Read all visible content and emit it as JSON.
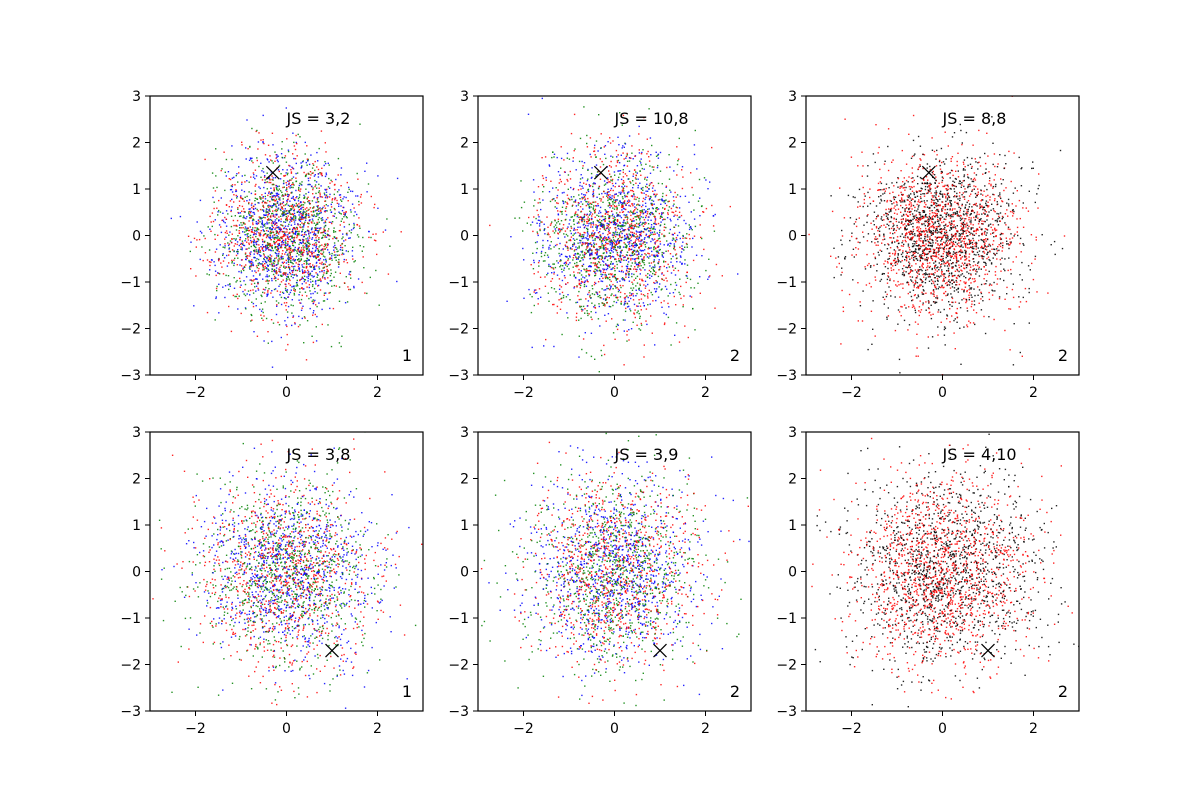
{
  "figure": {
    "background": "#ffffff",
    "series_colors": {
      "red": "#ff0000",
      "green": "#008000",
      "blue": "#0000ff",
      "black": "#000000"
    },
    "point_size_note": "tiny dots"
  },
  "chart_data": [
    {
      "type": "scatter",
      "annotation": "JS = 3,2",
      "corner_label": "1",
      "xlim": [
        -3,
        3
      ],
      "ylim": [
        -3,
        3
      ],
      "xticks": [
        -2,
        0,
        2
      ],
      "yticks": [
        -3,
        -2,
        -1,
        0,
        1,
        2,
        3
      ],
      "grid": false,
      "marker": {
        "symbol": "x",
        "x": -0.3,
        "y": 1.35
      },
      "distribution": {
        "shape": "gaussian cloud",
        "center": [
          0,
          0
        ],
        "std": [
          0.75,
          0.85
        ]
      },
      "series": [
        {
          "color": "#ff0000",
          "count": 900
        },
        {
          "color": "#008000",
          "count": 900
        },
        {
          "color": "#0000ff",
          "count": 900
        }
      ]
    },
    {
      "type": "scatter",
      "annotation": "JS = 10,8",
      "corner_label": "2",
      "xlim": [
        -3,
        3
      ],
      "ylim": [
        -3,
        3
      ],
      "xticks": [
        -2,
        0,
        2
      ],
      "yticks": [
        -3,
        -2,
        -1,
        0,
        1,
        2,
        3
      ],
      "grid": false,
      "marker": {
        "symbol": "x",
        "x": -0.3,
        "y": 1.35
      },
      "distribution": {
        "shape": "gaussian cloud",
        "center": [
          0,
          0
        ],
        "std": [
          0.85,
          0.9
        ]
      },
      "series": [
        {
          "color": "#ff0000",
          "count": 900
        },
        {
          "color": "#008000",
          "count": 900
        },
        {
          "color": "#0000ff",
          "count": 900
        }
      ]
    },
    {
      "type": "scatter",
      "annotation": "JS = 8,8",
      "corner_label": "2",
      "xlim": [
        -3,
        3
      ],
      "ylim": [
        -3,
        3
      ],
      "xticks": [
        -2,
        0,
        2
      ],
      "yticks": [
        -3,
        -2,
        -1,
        0,
        1,
        2,
        3
      ],
      "grid": false,
      "marker": {
        "symbol": "x",
        "x": -0.3,
        "y": 1.35
      },
      "distribution": {
        "shape": "gaussian cloud",
        "center": [
          0,
          0
        ],
        "std": [
          0.85,
          0.85
        ]
      },
      "series": [
        {
          "color": "#ff0000",
          "count": 1300
        },
        {
          "color": "#000000",
          "count": 1300
        }
      ]
    },
    {
      "type": "scatter",
      "annotation": "JS = 3,8",
      "corner_label": "1",
      "xlim": [
        -3,
        3
      ],
      "ylim": [
        -3,
        3
      ],
      "xticks": [
        -2,
        0,
        2
      ],
      "yticks": [
        -3,
        -2,
        -1,
        0,
        1,
        2,
        3
      ],
      "grid": false,
      "marker": {
        "symbol": "x",
        "x": 1.0,
        "y": -1.7
      },
      "distribution": {
        "shape": "gaussian cloud",
        "center": [
          0,
          0
        ],
        "std": [
          0.95,
          1.0
        ]
      },
      "series": [
        {
          "color": "#ff0000",
          "count": 900
        },
        {
          "color": "#008000",
          "count": 900
        },
        {
          "color": "#0000ff",
          "count": 900
        }
      ]
    },
    {
      "type": "scatter",
      "annotation": "JS = 3,9",
      "corner_label": "2",
      "xlim": [
        -3,
        3
      ],
      "ylim": [
        -3,
        3
      ],
      "xticks": [
        -2,
        0,
        2
      ],
      "yticks": [
        -3,
        -2,
        -1,
        0,
        1,
        2,
        3
      ],
      "grid": false,
      "marker": {
        "symbol": "x",
        "x": 1.0,
        "y": -1.7
      },
      "distribution": {
        "shape": "gaussian cloud",
        "center": [
          0,
          0
        ],
        "std": [
          0.95,
          1.0
        ]
      },
      "series": [
        {
          "color": "#ff0000",
          "count": 900
        },
        {
          "color": "#008000",
          "count": 900
        },
        {
          "color": "#0000ff",
          "count": 900
        }
      ]
    },
    {
      "type": "scatter",
      "annotation": "JS = 4,10",
      "corner_label": "2",
      "xlim": [
        -3,
        3
      ],
      "ylim": [
        -3,
        3
      ],
      "xticks": [
        -2,
        0,
        2
      ],
      "yticks": [
        -3,
        -2,
        -1,
        0,
        1,
        2,
        3
      ],
      "grid": false,
      "marker": {
        "symbol": "x",
        "x": 1.0,
        "y": -1.7
      },
      "distribution": {
        "shape": "gaussian cloud",
        "center": [
          0,
          0
        ],
        "std": [
          1.0,
          1.0
        ]
      },
      "series": [
        {
          "color": "#ff0000",
          "count": 1300
        },
        {
          "color": "#000000",
          "count": 1300
        }
      ]
    }
  ]
}
